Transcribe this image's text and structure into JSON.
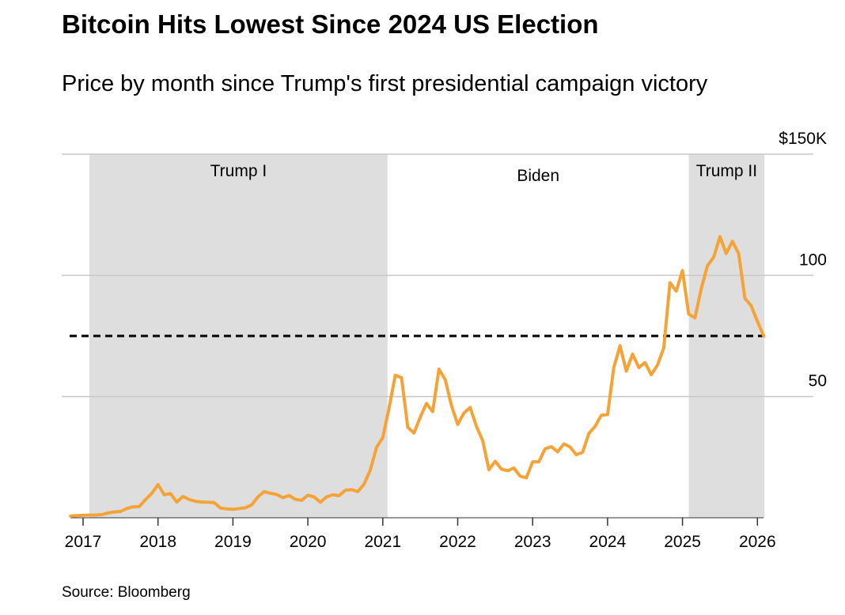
{
  "chart_data": {
    "type": "line",
    "title": "Bitcoin Hits Lowest Since 2024 US Election",
    "subtitle": "Price by month since Trump's first presidential campaign victory",
    "source": "Source: Bloomberg",
    "x": [
      "2016-11",
      "2016-12",
      "2017-01",
      "2017-02",
      "2017-03",
      "2017-04",
      "2017-05",
      "2017-06",
      "2017-07",
      "2017-08",
      "2017-09",
      "2017-10",
      "2017-11",
      "2017-12",
      "2018-01",
      "2018-02",
      "2018-03",
      "2018-04",
      "2018-05",
      "2018-06",
      "2018-07",
      "2018-08",
      "2018-09",
      "2018-10",
      "2018-11",
      "2018-12",
      "2019-01",
      "2019-02",
      "2019-03",
      "2019-04",
      "2019-05",
      "2019-06",
      "2019-07",
      "2019-08",
      "2019-09",
      "2019-10",
      "2019-11",
      "2019-12",
      "2020-01",
      "2020-02",
      "2020-03",
      "2020-04",
      "2020-05",
      "2020-06",
      "2020-07",
      "2020-08",
      "2020-09",
      "2020-10",
      "2020-11",
      "2020-12",
      "2021-01",
      "2021-02",
      "2021-03",
      "2021-04",
      "2021-05",
      "2021-06",
      "2021-07",
      "2021-08",
      "2021-09",
      "2021-10",
      "2021-11",
      "2021-12",
      "2022-01",
      "2022-02",
      "2022-03",
      "2022-04",
      "2022-05",
      "2022-06",
      "2022-07",
      "2022-08",
      "2022-09",
      "2022-10",
      "2022-11",
      "2022-12",
      "2023-01",
      "2023-02",
      "2023-03",
      "2023-04",
      "2023-05",
      "2023-06",
      "2023-07",
      "2023-08",
      "2023-09",
      "2023-10",
      "2023-11",
      "2023-12",
      "2024-01",
      "2024-02",
      "2024-03",
      "2024-04",
      "2024-05",
      "2024-06",
      "2024-07",
      "2024-08",
      "2024-09",
      "2024-10",
      "2024-11",
      "2024-12",
      "2025-01",
      "2025-02",
      "2025-03",
      "2025-04",
      "2025-05",
      "2025-06",
      "2025-07",
      "2025-08",
      "2025-09",
      "2025-10",
      "2025-11",
      "2025-12",
      "2026-01",
      "2026-02"
    ],
    "series": [
      {
        "name": "Bitcoin",
        "color": "#f5a236",
        "values": [
          0.7,
          0.9,
          1.0,
          1.1,
          1.1,
          1.3,
          2.0,
          2.4,
          2.6,
          3.8,
          4.5,
          4.6,
          7.5,
          10.0,
          13.7,
          9.5,
          10.0,
          6.5,
          8.8,
          7.5,
          6.8,
          6.5,
          6.4,
          6.3,
          4.0,
          3.7,
          3.5,
          3.8,
          4.1,
          5.3,
          8.6,
          10.8,
          10.1,
          9.6,
          8.3,
          9.2,
          7.6,
          7.2,
          9.3,
          8.6,
          6.4,
          8.6,
          9.5,
          9.1,
          11.3,
          11.6,
          10.8,
          13.8,
          19.7,
          29.0,
          33.1,
          45.2,
          58.8,
          57.8,
          37.3,
          35.0,
          41.5,
          47.2,
          43.8,
          61.3,
          57.0,
          46.3,
          38.5,
          43.2,
          45.5,
          37.7,
          31.8,
          19.8,
          23.3,
          20.1,
          19.4,
          20.5,
          17.2,
          16.5,
          23.1,
          23.1,
          28.5,
          29.3,
          27.2,
          30.5,
          29.2,
          26.0,
          27.0,
          34.7,
          37.7,
          42.3,
          42.6,
          62.0,
          71.0,
          60.5,
          67.5,
          62.0,
          64.0,
          59.0,
          63.0,
          70.0,
          97.0,
          93.5,
          102.0,
          84.0,
          82.5,
          94.5,
          104.0,
          107.5,
          116.0,
          109.0,
          114.0,
          109.0,
          90.5,
          87.5,
          81.0,
          75.0
        ]
      }
    ],
    "reference_line": 75,
    "periods": [
      {
        "label": "Trump I",
        "start": "2017-01",
        "end": "2021-01",
        "shaded": true
      },
      {
        "label": "Biden",
        "start": "2021-01",
        "end": "2025-01",
        "shaded": false
      },
      {
        "label": "Trump II",
        "start": "2025-01",
        "end": "2026-02",
        "shaded": true
      }
    ],
    "shade_color": "#dedede",
    "xlim": [
      "2016-11",
      "2026-02"
    ],
    "xticks": [
      2017,
      2018,
      2019,
      2020,
      2021,
      2022,
      2023,
      2024,
      2025,
      2026
    ],
    "ylim": [
      0,
      150
    ],
    "yticks": [
      {
        "value": 150,
        "label": "$150K"
      },
      100,
      50
    ],
    "grid": true
  }
}
